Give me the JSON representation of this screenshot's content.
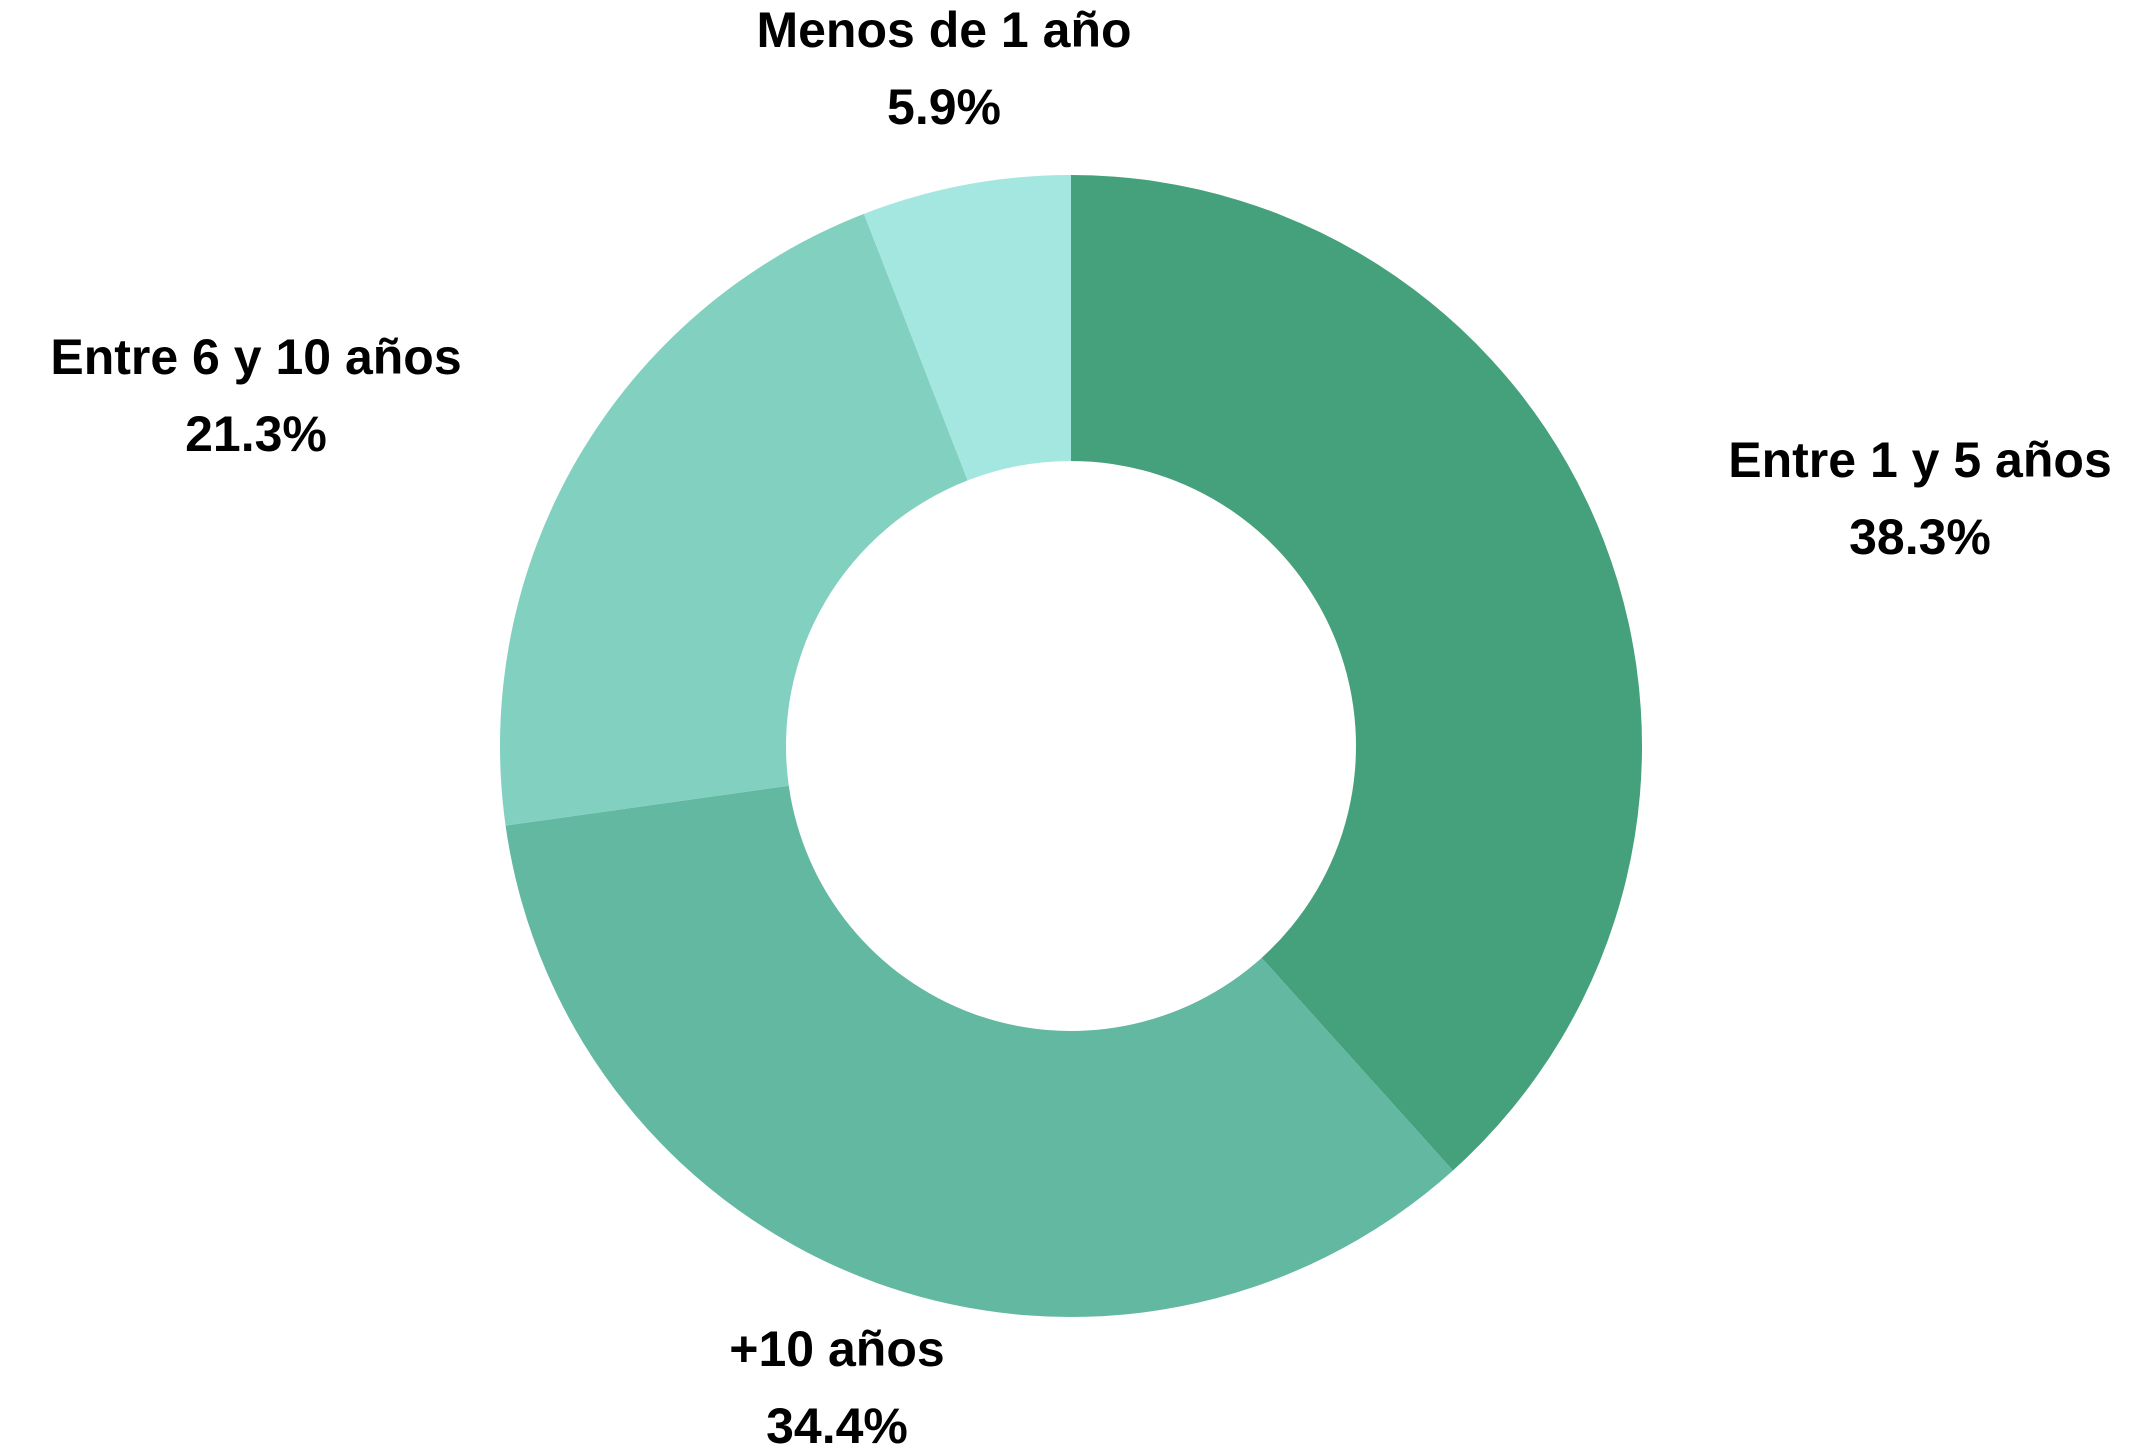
{
  "chart_data": {
    "type": "donut",
    "categories": [
      "Entre 1 y 5 años",
      "+10 años",
      "Entre 6 y 10 años",
      "Menos de 1 año"
    ],
    "values": [
      38.3,
      34.4,
      21.3,
      5.9
    ],
    "value_labels": [
      "38.3%",
      "34.4%",
      "21.3%",
      "5.9%"
    ],
    "colors": [
      "#45a07c",
      "#62b8a0",
      "#82d0c0",
      "#a4e6e0"
    ]
  }
}
